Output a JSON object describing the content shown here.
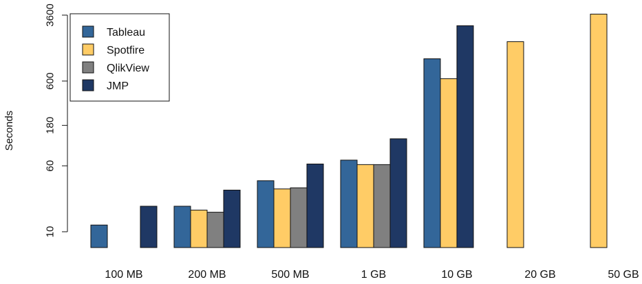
{
  "chart_data": {
    "type": "bar",
    "title": "",
    "xlabel": "",
    "ylabel": "Seconds",
    "y_scale": "log",
    "ylim": [
      5.5,
      4500
    ],
    "y_ticks": [
      10,
      60,
      180,
      600,
      3600
    ],
    "y_tick_labels": [
      "10",
      "60",
      "180",
      "600",
      "3600"
    ],
    "categories": [
      "100 MB",
      "200 MB",
      "500 MB",
      "1 GB",
      "10 GB",
      "20 GB",
      "50 GB"
    ],
    "series": [
      {
        "name": "Tableau",
        "color": "#336699",
        "values": [
          12,
          20,
          40,
          70,
          1100,
          null,
          null
        ]
      },
      {
        "name": "Spotfire",
        "color": "#FFCC66",
        "values": [
          6,
          18,
          32,
          62,
          640,
          1750,
          3700
        ]
      },
      {
        "name": "QlikView",
        "color": "#808080",
        "values": [
          6,
          17,
          33,
          62,
          null,
          null,
          null
        ]
      },
      {
        "name": "JMP",
        "color": "#1F3864",
        "values": [
          20,
          31,
          63,
          125,
          2700,
          null,
          null
        ]
      }
    ],
    "legend": {
      "position": "top-left",
      "box": true
    },
    "grid": false
  }
}
